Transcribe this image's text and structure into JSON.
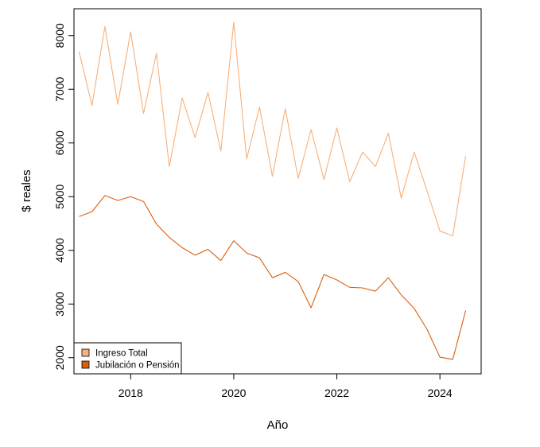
{
  "chart_data": {
    "type": "line",
    "title": "",
    "xlabel": "Año",
    "ylabel": "$ reales",
    "xlim": [
      2016.9,
      2024.8
    ],
    "ylim": [
      1700,
      8500
    ],
    "x_ticks": [
      2018,
      2020,
      2022,
      2024
    ],
    "y_ticks": [
      2000,
      3000,
      4000,
      5000,
      6000,
      7000,
      8000
    ],
    "grid": false,
    "legend_position": "bottom-left",
    "x": [
      2017.0,
      2017.25,
      2017.5,
      2017.75,
      2018.0,
      2018.25,
      2018.5,
      2018.75,
      2019.0,
      2019.25,
      2019.5,
      2019.75,
      2020.0,
      2020.25,
      2020.5,
      2020.75,
      2021.0,
      2021.25,
      2021.5,
      2021.75,
      2022.0,
      2022.25,
      2022.5,
      2022.75,
      2023.0,
      2023.25,
      2023.5,
      2023.75,
      2024.0,
      2024.25,
      2024.5
    ],
    "series": [
      {
        "name": "Ingreso Total",
        "color": "#f7b07a",
        "values": [
          7700,
          6700,
          8170,
          6720,
          8070,
          6550,
          7670,
          5560,
          6840,
          6100,
          6940,
          5850,
          8250,
          5700,
          6670,
          5380,
          6640,
          5340,
          6250,
          5320,
          6280,
          5280,
          5830,
          5560,
          6180,
          4970,
          5830,
          5110,
          4360,
          4270,
          5760
        ]
      },
      {
        "name": "Jubilación o Pensión",
        "color": "#d95f0e",
        "values": [
          4630,
          4720,
          5020,
          4930,
          5000,
          4910,
          4490,
          4240,
          4050,
          3910,
          4020,
          3810,
          4180,
          3950,
          3860,
          3490,
          3590,
          3420,
          2930,
          3550,
          3450,
          3310,
          3300,
          3240,
          3490,
          3170,
          2920,
          2530,
          2010,
          1970,
          2880
        ]
      }
    ]
  }
}
